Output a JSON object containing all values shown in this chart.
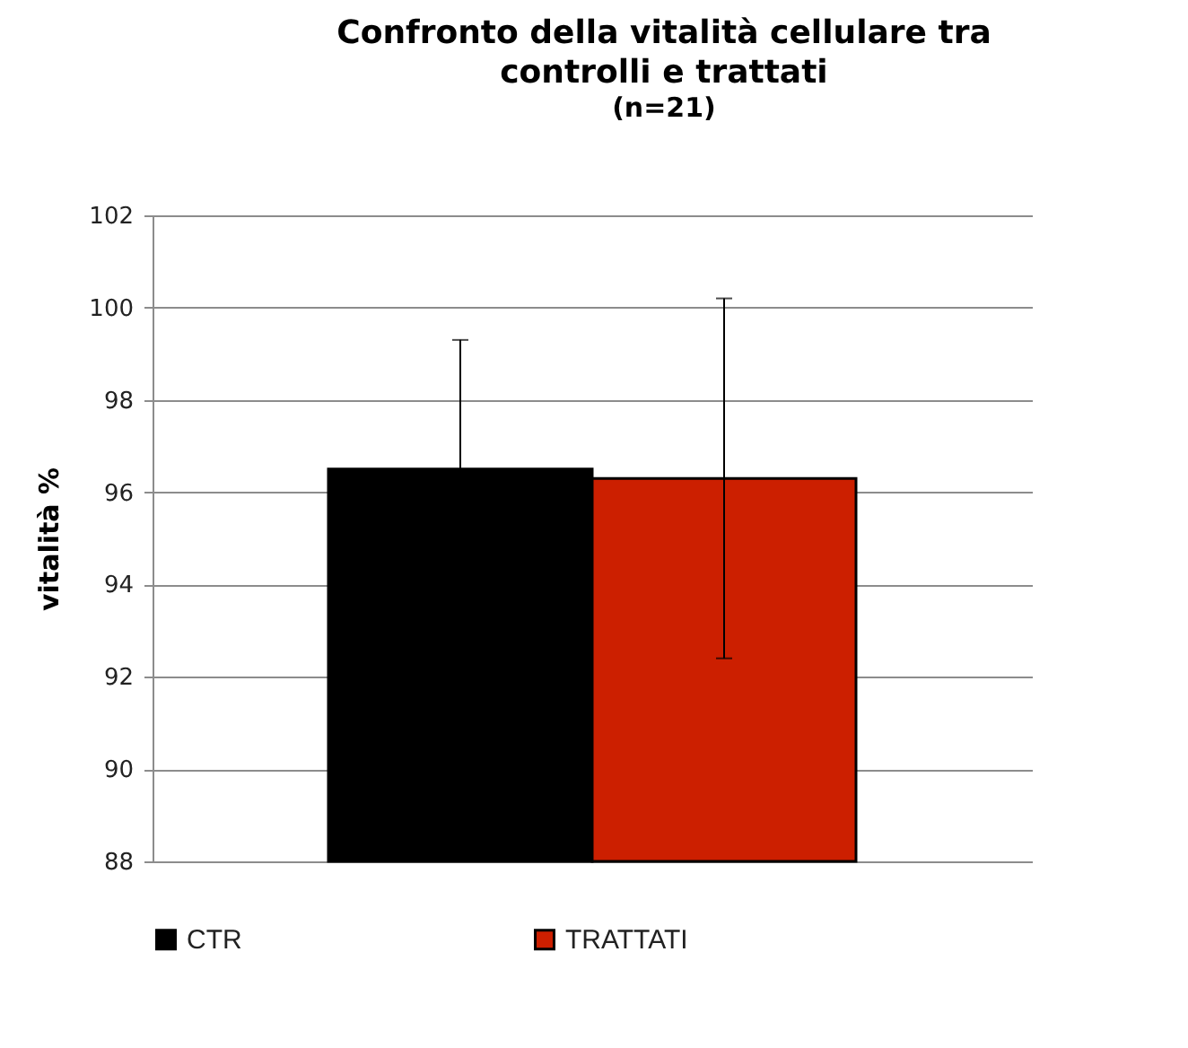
{
  "chart_data": {
    "type": "bar",
    "title": "Confronto della vitalità cellulare tra controlli e trattati",
    "subtitle": "(n=21)",
    "ylabel": "vitalità %",
    "categories": [
      null
    ],
    "series": [
      {
        "name": "CTR",
        "color": "#000000",
        "values": [
          96.5
        ],
        "errors": [
          2.8
        ]
      },
      {
        "name": "TRATTATI",
        "color": "#cc1f00",
        "values": [
          96.3
        ],
        "errors": [
          3.9
        ]
      }
    ],
    "ylim": [
      88,
      102
    ],
    "yticks": [
      88,
      90,
      92,
      94,
      96,
      98,
      100,
      102
    ],
    "grid": "y",
    "legend": "bottom"
  }
}
